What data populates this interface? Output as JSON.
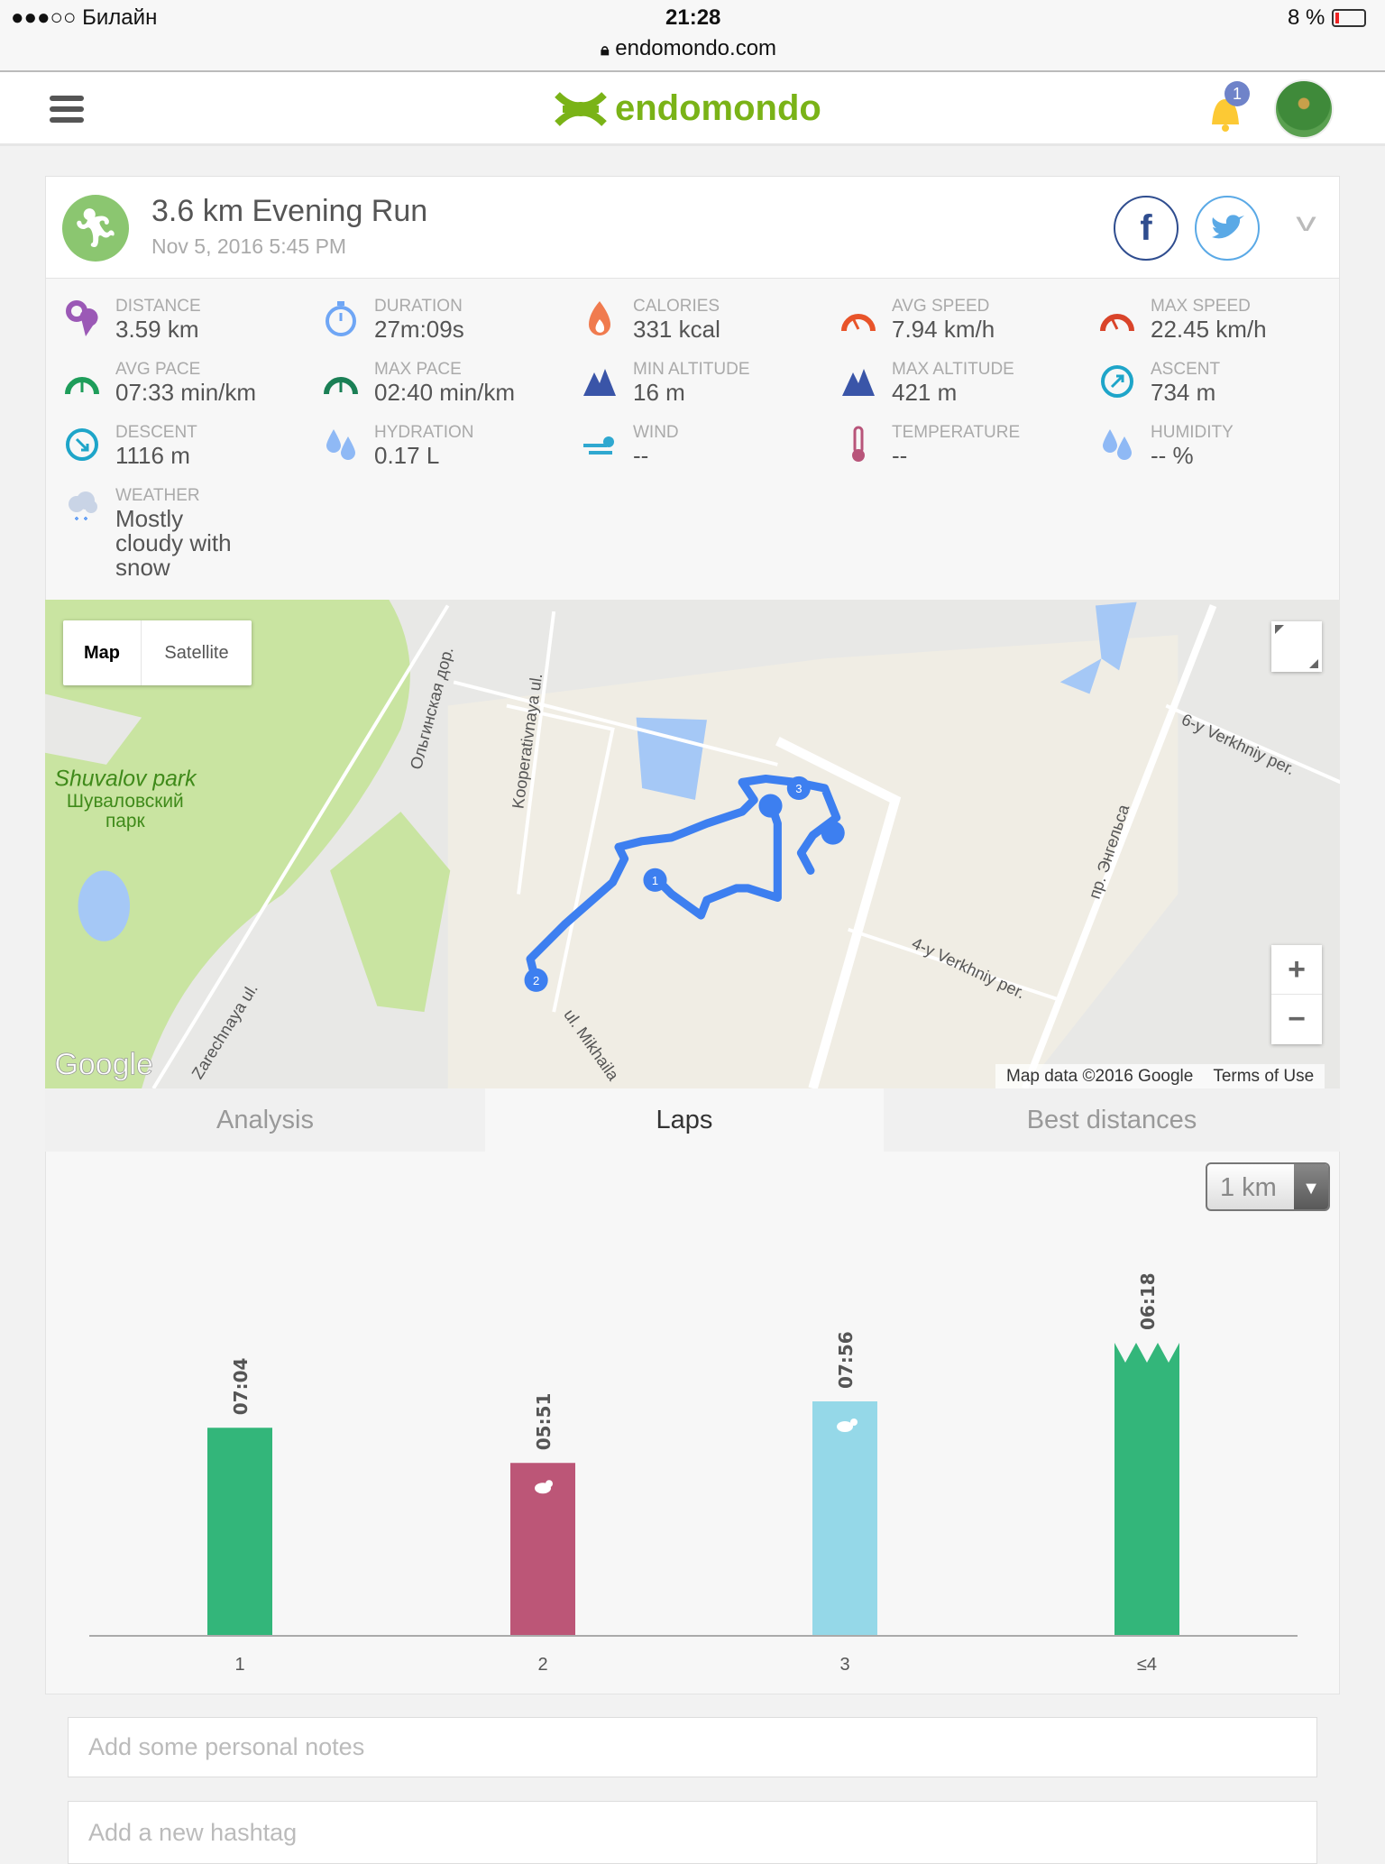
{
  "status_bar": {
    "carrier": "●●●○○ Билайн",
    "time": "21:28",
    "url": "endomondo.com",
    "battery": "8 %"
  },
  "header": {
    "brand": "endomondo",
    "notification_count": "1",
    "brand_color": "#7ab317"
  },
  "workout": {
    "title": "3.6 km Evening Run",
    "date": "Nov 5, 2016 5:45 PM"
  },
  "stats": [
    {
      "label": "Distance",
      "value": "3.59 km",
      "icon": "location-pin-icon",
      "color": "#9b59b6"
    },
    {
      "label": "Duration",
      "value": "27m:09s",
      "icon": "stopwatch-icon",
      "color": "#6fa6f5"
    },
    {
      "label": "Calories",
      "value": "331 kcal",
      "icon": "flame-icon",
      "color": "#f07b4f"
    },
    {
      "label": "Avg speed",
      "value": "7.94 km/h",
      "icon": "speedometer-icon",
      "color": "#e8542a"
    },
    {
      "label": "Max speed",
      "value": "22.45 km/h",
      "icon": "speedometer-icon",
      "color": "#d9442a"
    },
    {
      "label": "Avg pace",
      "value": "07:33 min/km",
      "icon": "pace-gauge-icon",
      "color": "#1e9d5a"
    },
    {
      "label": "Max pace",
      "value": "02:40 min/km",
      "icon": "pace-gauge-icon",
      "color": "#1a7f55"
    },
    {
      "label": "Min altitude",
      "value": "16 m",
      "icon": "mountain-icon",
      "color": "#3a55a8"
    },
    {
      "label": "Max altitude",
      "value": "421 m",
      "icon": "mountain-icon",
      "color": "#3a55a8"
    },
    {
      "label": "Ascent",
      "value": "734 m",
      "icon": "ascent-icon",
      "color": "#1ea5c9"
    },
    {
      "label": "Descent",
      "value": "1116 m",
      "icon": "descent-icon",
      "color": "#1ea5c9"
    },
    {
      "label": "Hydration",
      "value": "0.17 L",
      "icon": "water-drops-icon",
      "color": "#8fb9f5"
    },
    {
      "label": "Wind",
      "value": "--",
      "icon": "wind-icon",
      "color": "#2fa8d0"
    },
    {
      "label": "Temperature",
      "value": "--",
      "icon": "thermometer-icon",
      "color": "#b8557a"
    },
    {
      "label": "Humidity",
      "value": "-- %",
      "icon": "water-drops-icon",
      "color": "#8fb9f5"
    },
    {
      "label": "Weather",
      "value": "Mostly cloudy with snow",
      "icon": "snow-cloud-icon",
      "color": "#c9d4e6"
    }
  ],
  "map": {
    "type_map": "Map",
    "type_satellite": "Satellite",
    "labels": {
      "park_en": "Shuvalov park",
      "park_ru1": "Шуваловский",
      "park_ru2": "парк",
      "olginskaya": "Ольгинская дор.",
      "kooperativnaya": "Kooperativnaya ul.",
      "verkhniy6": "6-y Verkhniy per.",
      "verkhniy4": "4-y Verkhniy per.",
      "engelsa": "пр. Энгельса",
      "mikhaila": "ul. Mikhaila",
      "zare": "Zarechnaya ul."
    },
    "google": "Google",
    "attribution": "Map data ©2016 Google",
    "terms": "Terms of Use",
    "zoom_in": "+",
    "zoom_out": "−",
    "lap_markers": [
      "1",
      "2",
      "3"
    ]
  },
  "tabs": [
    {
      "label": "Analysis"
    },
    {
      "label": "Laps",
      "active": true
    },
    {
      "label": "Best distances"
    }
  ],
  "laps": {
    "unit_select": "1 km"
  },
  "chart_data": {
    "type": "bar",
    "title": "",
    "xlabel": "",
    "ylabel": "",
    "categories": [
      "1",
      "2",
      "3",
      "≤4"
    ],
    "pace_labels": [
      "07:04",
      "05:51",
      "07:56",
      "06:18"
    ],
    "values": [
      0.71,
      0.59,
      0.8,
      1.0
    ],
    "ylim": [
      0,
      1
    ],
    "colors": [
      "#33b67a",
      "#bc5677",
      "#95d8e8",
      "#33b67a"
    ],
    "markers": [
      "",
      "rabbit",
      "turtle",
      "clipped"
    ],
    "grid": false
  },
  "notes": {
    "placeholder": "Add some personal notes"
  },
  "hashtag": {
    "placeholder": "Add a new hashtag"
  }
}
